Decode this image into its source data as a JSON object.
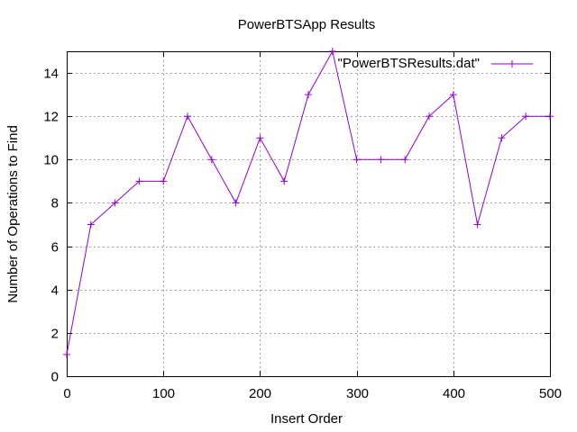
{
  "chart_data": {
    "type": "line",
    "title": "PowerBTSApp Results",
    "xlabel": "Insert Order",
    "ylabel": "Number of Operations to Find",
    "xlim": [
      0,
      500
    ],
    "ylim": [
      0,
      15
    ],
    "xticks": [
      0,
      100,
      200,
      300,
      400,
      500
    ],
    "yticks": [
      0,
      2,
      4,
      6,
      8,
      10,
      12,
      14
    ],
    "grid": true,
    "legend_position": "top-right",
    "series": [
      {
        "name": "\"PowerBTSResults.dat\"",
        "color": "#9400d3",
        "marker": "plus",
        "x": [
          0,
          25,
          50,
          75,
          100,
          125,
          150,
          175,
          200,
          225,
          250,
          275,
          300,
          325,
          350,
          375,
          400,
          425,
          450,
          475,
          500
        ],
        "y": [
          1,
          7,
          8,
          9,
          9,
          12,
          10,
          8,
          11,
          9,
          13,
          15,
          10,
          10,
          10,
          12,
          13,
          7,
          11,
          12,
          12
        ]
      }
    ]
  }
}
